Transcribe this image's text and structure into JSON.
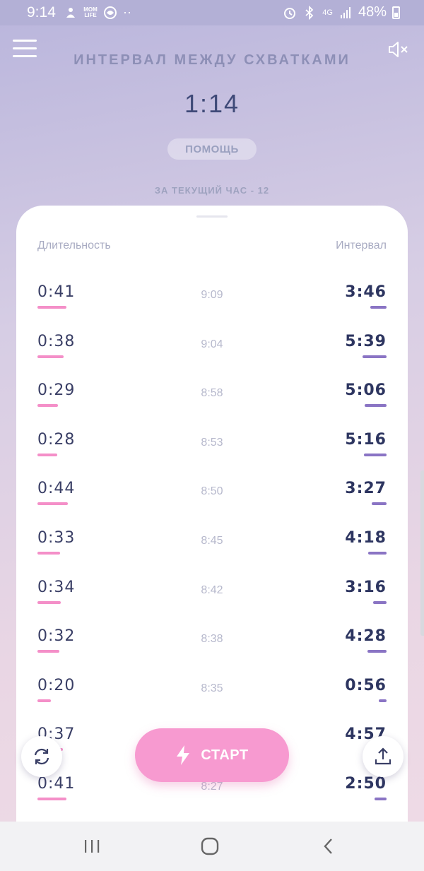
{
  "status_bar": {
    "time": "9:14",
    "battery": "48%",
    "network": "4G",
    "mom_life_label": "MOM LIFE",
    "dots": "··"
  },
  "header": {
    "title": "ИНТЕРВАЛ МЕЖДУ СХВАТКАМИ",
    "value": "1:14",
    "help_label": "ПОМОЩЬ",
    "hour_count": "ЗА ТЕКУЩИЙ ЧАС - 12"
  },
  "table": {
    "left_header": "Длительность",
    "right_header": "Интервал",
    "rows": [
      {
        "duration": "0:41",
        "time": "9:09",
        "interval": "3:46",
        "duration_level": 0.75,
        "interval_level": 0.42
      },
      {
        "duration": "0:38",
        "time": "9:04",
        "interval": "5:39",
        "duration_level": 0.69,
        "interval_level": 0.63
      },
      {
        "duration": "0:29",
        "time": "8:58",
        "interval": "5:06",
        "duration_level": 0.53,
        "interval_level": 0.57
      },
      {
        "duration": "0:28",
        "time": "8:53",
        "interval": "5:16",
        "duration_level": 0.51,
        "interval_level": 0.59
      },
      {
        "duration": "0:44",
        "time": "8:50",
        "interval": "3:27",
        "duration_level": 0.8,
        "interval_level": 0.38
      },
      {
        "duration": "0:33",
        "time": "8:45",
        "interval": "4:18",
        "duration_level": 0.6,
        "interval_level": 0.48
      },
      {
        "duration": "0:34",
        "time": "8:42",
        "interval": "3:16",
        "duration_level": 0.62,
        "interval_level": 0.36
      },
      {
        "duration": "0:32",
        "time": "8:38",
        "interval": "4:28",
        "duration_level": 0.58,
        "interval_level": 0.5
      },
      {
        "duration": "0:20",
        "time": "8:35",
        "interval": "0:56",
        "duration_level": 0.36,
        "interval_level": 0.2
      },
      {
        "duration": "0:37",
        "time": "",
        "interval": "4:57",
        "duration_level": 0.67,
        "interval_level": 0.55
      },
      {
        "duration": "0:41",
        "time": "8:27",
        "interval": "2:50",
        "duration_level": 0.75,
        "interval_level": 0.32
      }
    ]
  },
  "actions": {
    "start_label": "СТАРТ"
  },
  "colors": {
    "duration_bar": "#f48fc8",
    "interval_bar": "#8a74c4",
    "start_button": "#f79ad0"
  },
  "icons": {
    "menu": "hamburger-icon",
    "sound": "mute-icon",
    "refresh": "refresh-icon",
    "share": "upload-icon",
    "start": "lightning-icon"
  }
}
